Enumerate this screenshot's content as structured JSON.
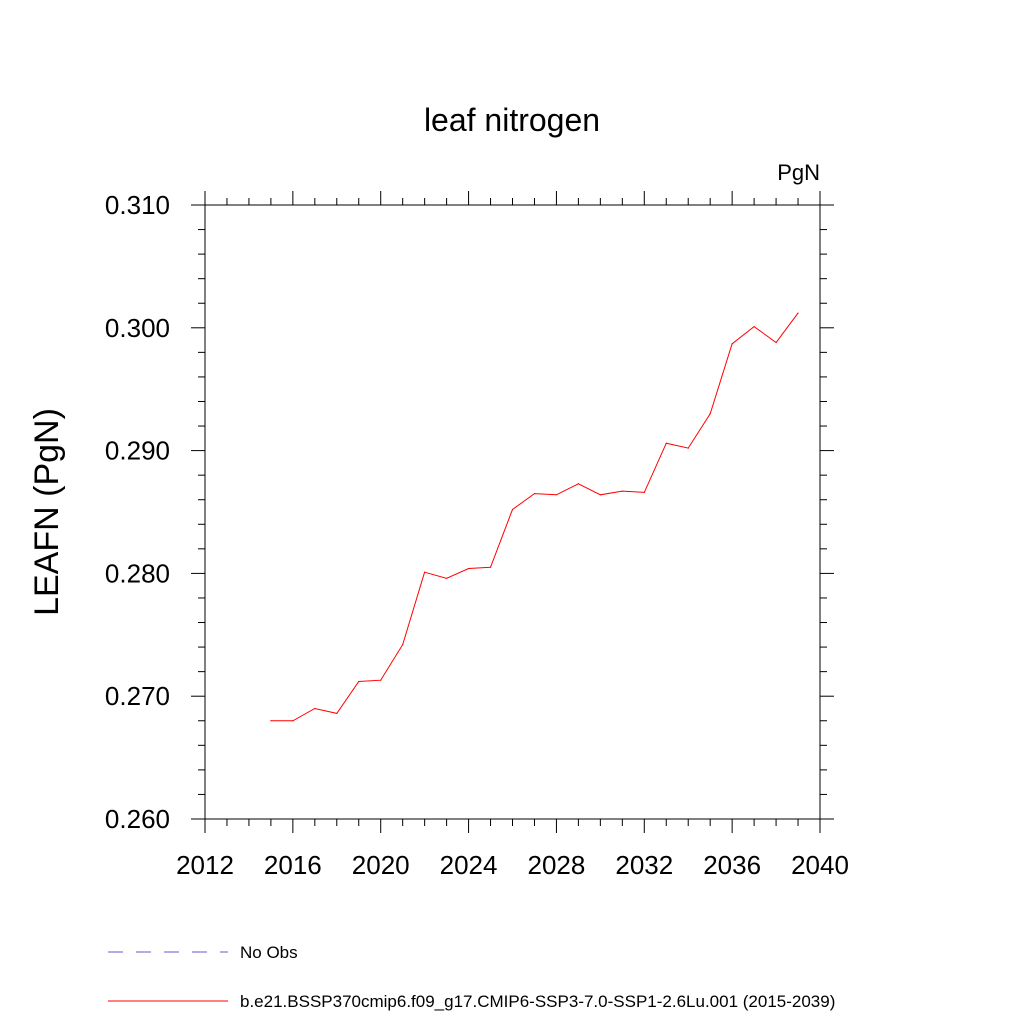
{
  "chart_data": {
    "type": "line",
    "title": "leaf nitrogen",
    "units_label": "PgN",
    "ylabel": "LEAFN  (PgN)",
    "xlabel": "",
    "xlim": [
      2012,
      2040
    ],
    "ylim": [
      0.26,
      0.31
    ],
    "x_ticks": [
      2012,
      2016,
      2020,
      2024,
      2028,
      2032,
      2036,
      2040
    ],
    "x_tick_labels": [
      "2012",
      "2016",
      "2020",
      "2024",
      "2028",
      "2032",
      "2036",
      "2040"
    ],
    "y_ticks": [
      0.26,
      0.27,
      0.28,
      0.29,
      0.3,
      0.31
    ],
    "y_tick_labels": [
      "0.260",
      "0.270",
      "0.280",
      "0.290",
      "0.300",
      "0.310"
    ],
    "grid": false,
    "legend_position": "bottom",
    "legend": [
      {
        "label": "No Obs",
        "color": "#6a5acd",
        "style": "dashed"
      },
      {
        "label": "b.e21.BSSP370cmip6.f09_g17.CMIP6-SSP3-7.0-SSP1-2.6Lu.001 (2015-2039)",
        "color": "#ff0000",
        "style": "solid"
      }
    ],
    "series": [
      {
        "color": "#ff0000",
        "x": [
          2015,
          2016,
          2017,
          2018,
          2019,
          2020,
          2021,
          2022,
          2023,
          2024,
          2025,
          2026,
          2027,
          2028,
          2029,
          2030,
          2031,
          2032,
          2033,
          2034,
          2035,
          2036,
          2037,
          2038,
          2039
        ],
        "y": [
          0.268,
          0.268,
          0.269,
          0.2686,
          0.2712,
          0.2713,
          0.2742,
          0.2801,
          0.2796,
          0.2804,
          0.2805,
          0.2852,
          0.2865,
          0.2864,
          0.2873,
          0.2864,
          0.2867,
          0.2866,
          0.2906,
          0.2902,
          0.293,
          0.2987,
          0.3001,
          0.2988,
          0.3012
        ]
      }
    ]
  }
}
